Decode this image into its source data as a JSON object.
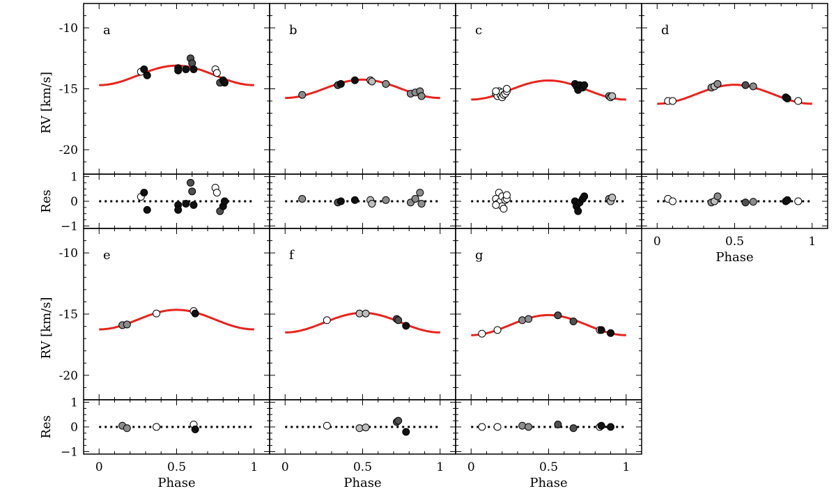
{
  "figure_text": {
    "x_axis_label": "Phase",
    "rv_axis_label": "RV [km/s]",
    "res_axis_label": "Res"
  },
  "colors": {
    "model_curve": "#e8231c",
    "marker_edge": "#000000",
    "white": "#ffffff",
    "light_gray": "#bdbdbd",
    "mid_gray": "#8c8c8c",
    "dark_gray": "#505050",
    "black": "#111111"
  },
  "chart_data": [
    {
      "id": "a",
      "type": "scatter",
      "label": "a",
      "xlim": [
        -0.1,
        1.1
      ],
      "rv_ylim": [
        -22,
        -8
      ],
      "res_ylim": [
        -1.1,
        1.1
      ],
      "rv_ticks": [
        -10,
        -15,
        -20
      ],
      "res_ticks": [
        1,
        0,
        -1
      ],
      "x_ticks": [
        0,
        0.5,
        1
      ],
      "x_tick_labels": [],
      "rv_tick_labels": [
        "-10",
        "-15",
        "-20"
      ],
      "res_tick_labels": [
        "1",
        "0",
        "−1"
      ],
      "model": {
        "gamma": -13.9,
        "amplitude": 0.8
      },
      "points": [
        {
          "phase": 0.27,
          "rv": -13.6,
          "res": 0.18,
          "shade": "white"
        },
        {
          "phase": 0.29,
          "rv": -13.4,
          "res": 0.35,
          "shade": "black"
        },
        {
          "phase": 0.31,
          "rv": -13.9,
          "res": -0.35,
          "shade": "black"
        },
        {
          "phase": 0.51,
          "rv": -13.3,
          "res": -0.15,
          "shade": "black"
        },
        {
          "phase": 0.51,
          "rv": -13.5,
          "res": -0.35,
          "shade": "black"
        },
        {
          "phase": 0.56,
          "rv": -13.4,
          "res": -0.1,
          "shade": "black"
        },
        {
          "phase": 0.59,
          "rv": -12.5,
          "res": 0.75,
          "shade": "dark_gray"
        },
        {
          "phase": 0.6,
          "rv": -12.9,
          "res": 0.4,
          "shade": "dark_gray"
        },
        {
          "phase": 0.61,
          "rv": -13.4,
          "res": -0.15,
          "shade": "black"
        },
        {
          "phase": 0.75,
          "rv": -13.4,
          "res": 0.55,
          "shade": "white"
        },
        {
          "phase": 0.76,
          "rv": -13.7,
          "res": 0.35,
          "shade": "white"
        },
        {
          "phase": 0.78,
          "rv": -14.5,
          "res": -0.4,
          "shade": "dark_gray"
        },
        {
          "phase": 0.8,
          "rv": -14.3,
          "res": -0.2,
          "shade": "black"
        },
        {
          "phase": 0.81,
          "rv": -14.5,
          "res": 0.0,
          "shade": "black"
        }
      ]
    },
    {
      "id": "b",
      "type": "scatter",
      "label": "b",
      "xlim": [
        -0.1,
        1.1
      ],
      "rv_ylim": [
        -22,
        -8
      ],
      "res_ylim": [
        -1.1,
        1.1
      ],
      "rv_ticks": [
        -10,
        -15,
        -20
      ],
      "res_ticks": [
        1,
        0,
        -1
      ],
      "x_ticks": [
        0,
        0.5,
        1
      ],
      "x_tick_labels": [],
      "rv_tick_labels": [],
      "res_tick_labels": [],
      "model": {
        "gamma": -15.0,
        "amplitude": 0.75
      },
      "points": [
        {
          "phase": 0.11,
          "rv": -15.5,
          "res": 0.1,
          "shade": "mid_gray"
        },
        {
          "phase": 0.34,
          "rv": -14.7,
          "res": -0.05,
          "shade": "dark_gray"
        },
        {
          "phase": 0.36,
          "rv": -14.6,
          "res": 0.0,
          "shade": "black"
        },
        {
          "phase": 0.45,
          "rv": -14.3,
          "res": 0.05,
          "shade": "black"
        },
        {
          "phase": 0.55,
          "rv": -14.3,
          "res": 0.05,
          "shade": "light_gray"
        },
        {
          "phase": 0.56,
          "rv": -14.4,
          "res": -0.1,
          "shade": "light_gray"
        },
        {
          "phase": 0.65,
          "rv": -14.6,
          "res": 0.05,
          "shade": "mid_gray"
        },
        {
          "phase": 0.81,
          "rv": -15.4,
          "res": -0.05,
          "shade": "mid_gray"
        },
        {
          "phase": 0.84,
          "rv": -15.3,
          "res": 0.1,
          "shade": "mid_gray"
        },
        {
          "phase": 0.87,
          "rv": -15.2,
          "res": 0.35,
          "shade": "mid_gray"
        },
        {
          "phase": 0.88,
          "rv": -15.6,
          "res": -0.1,
          "shade": "mid_gray"
        }
      ]
    },
    {
      "id": "c",
      "type": "scatter",
      "label": "c",
      "xlim": [
        -0.1,
        1.1
      ],
      "rv_ylim": [
        -22,
        -8
      ],
      "res_ylim": [
        -1.1,
        1.1
      ],
      "rv_ticks": [
        -10,
        -15,
        -20
      ],
      "res_ticks": [
        1,
        0,
        -1
      ],
      "x_ticks": [
        0,
        0.5,
        1
      ],
      "x_tick_labels": [],
      "rv_tick_labels": [],
      "res_tick_labels": [],
      "model": {
        "gamma": -15.1,
        "amplitude": 0.78
      },
      "points": [
        {
          "phase": 0.16,
          "rv": -15.4,
          "res": 0.1,
          "shade": "white"
        },
        {
          "phase": 0.17,
          "rv": -15.6,
          "res": -0.1,
          "shade": "white"
        },
        {
          "phase": 0.18,
          "rv": -15.2,
          "res": 0.35,
          "shade": "white"
        },
        {
          "phase": 0.19,
          "rv": -15.5,
          "res": 0.0,
          "shade": "white"
        },
        {
          "phase": 0.2,
          "rv": -15.7,
          "res": -0.2,
          "shade": "white"
        },
        {
          "phase": 0.2,
          "rv": -15.3,
          "res": 0.2,
          "shade": "white"
        },
        {
          "phase": 0.21,
          "rv": -15.5,
          "res": -0.3,
          "shade": "white"
        },
        {
          "phase": 0.22,
          "rv": -15.4,
          "res": 0.05,
          "shade": "white"
        },
        {
          "phase": 0.23,
          "rv": -15.2,
          "res": 0.1,
          "shade": "white"
        },
        {
          "phase": 0.23,
          "rv": -15.0,
          "res": 0.25,
          "shade": "white"
        },
        {
          "phase": 0.16,
          "rv": -15.2,
          "res": -0.15,
          "shade": "white"
        },
        {
          "phase": 0.67,
          "rv": -14.6,
          "res": 0.0,
          "shade": "black"
        },
        {
          "phase": 0.68,
          "rv": -14.8,
          "res": -0.2,
          "shade": "black"
        },
        {
          "phase": 0.69,
          "rv": -15.1,
          "res": -0.4,
          "shade": "black"
        },
        {
          "phase": 0.7,
          "rv": -14.7,
          "res": -0.05,
          "shade": "black"
        },
        {
          "phase": 0.72,
          "rv": -14.9,
          "res": 0.1,
          "shade": "black"
        },
        {
          "phase": 0.73,
          "rv": -14.7,
          "res": 0.2,
          "shade": "black"
        },
        {
          "phase": 0.89,
          "rv": -15.6,
          "res": 0.1,
          "shade": "mid_gray"
        },
        {
          "phase": 0.9,
          "rv": -15.7,
          "res": 0.0,
          "shade": "light_gray"
        },
        {
          "phase": 0.91,
          "rv": -15.6,
          "res": 0.15,
          "shade": "light_gray"
        }
      ]
    },
    {
      "id": "d",
      "type": "scatter",
      "label": "d",
      "xlim": [
        -0.1,
        1.1
      ],
      "rv_ylim": [
        -22,
        -8
      ],
      "res_ylim": [
        -1.1,
        1.1
      ],
      "rv_ticks": [
        -10,
        -15,
        -20
      ],
      "res_ticks": [
        1,
        0,
        -1
      ],
      "x_ticks": [
        0,
        0.5,
        1
      ],
      "x_tick_labels": [
        "0",
        "0.5",
        "1"
      ],
      "rv_tick_labels": [],
      "res_tick_labels": [],
      "show_xlabel": true,
      "model": {
        "gamma": -15.45,
        "amplitude": 0.78
      },
      "points": [
        {
          "phase": 0.07,
          "rv": -16.0,
          "res": 0.1,
          "shade": "white"
        },
        {
          "phase": 0.1,
          "rv": -16.0,
          "res": 0.0,
          "shade": "white"
        },
        {
          "phase": 0.35,
          "rv": -14.9,
          "res": -0.05,
          "shade": "mid_gray"
        },
        {
          "phase": 0.37,
          "rv": -14.8,
          "res": 0.0,
          "shade": "light_gray"
        },
        {
          "phase": 0.39,
          "rv": -14.6,
          "res": 0.2,
          "shade": "mid_gray"
        },
        {
          "phase": 0.57,
          "rv": -14.7,
          "res": -0.05,
          "shade": "dark_gray"
        },
        {
          "phase": 0.62,
          "rv": -14.8,
          "res": -0.02,
          "shade": "mid_gray"
        },
        {
          "phase": 0.83,
          "rv": -15.7,
          "res": 0.0,
          "shade": "black"
        },
        {
          "phase": 0.84,
          "rv": -15.8,
          "res": 0.05,
          "shade": "black"
        },
        {
          "phase": 0.91,
          "rv": -16.0,
          "res": 0.0,
          "shade": "white"
        }
      ]
    },
    {
      "id": "e",
      "type": "scatter",
      "label": "e",
      "xlim": [
        -0.1,
        1.1
      ],
      "rv_ylim": [
        -22,
        -8
      ],
      "res_ylim": [
        -1.1,
        1.1
      ],
      "rv_ticks": [
        -10,
        -15,
        -20
      ],
      "res_ticks": [
        1,
        0,
        -1
      ],
      "x_ticks": [
        0,
        0.5,
        1
      ],
      "x_tick_labels": [
        "0",
        "0.5",
        "1"
      ],
      "rv_tick_labels": [
        "-10",
        "-15",
        "-20"
      ],
      "res_tick_labels": [
        "1",
        "0",
        "−1"
      ],
      "show_xlabel": true,
      "model": {
        "gamma": -15.45,
        "amplitude": 0.8
      },
      "points": [
        {
          "phase": 0.15,
          "rv": -15.9,
          "res": 0.05,
          "shade": "mid_gray"
        },
        {
          "phase": 0.18,
          "rv": -15.85,
          "res": -0.05,
          "shade": "mid_gray"
        },
        {
          "phase": 0.37,
          "rv": -14.95,
          "res": 0.0,
          "shade": "white"
        },
        {
          "phase": 0.61,
          "rv": -14.75,
          "res": 0.1,
          "shade": "white"
        },
        {
          "phase": 0.62,
          "rv": -14.95,
          "res": -0.1,
          "shade": "black"
        }
      ]
    },
    {
      "id": "f",
      "type": "scatter",
      "label": "f",
      "xlim": [
        -0.1,
        1.1
      ],
      "rv_ylim": [
        -22,
        -8
      ],
      "res_ylim": [
        -1.1,
        1.1
      ],
      "rv_ticks": [
        -10,
        -15,
        -20
      ],
      "res_ticks": [
        1,
        0,
        -1
      ],
      "x_ticks": [
        0,
        0.5,
        1
      ],
      "x_tick_labels": [
        "0",
        "0.5",
        "1"
      ],
      "rv_tick_labels": [],
      "res_tick_labels": [],
      "show_xlabel": true,
      "model": {
        "gamma": -15.7,
        "amplitude": 0.8
      },
      "points": [
        {
          "phase": 0.27,
          "rv": -15.5,
          "res": 0.05,
          "shade": "white"
        },
        {
          "phase": 0.48,
          "rv": -14.95,
          "res": -0.05,
          "shade": "light_gray"
        },
        {
          "phase": 0.52,
          "rv": -14.95,
          "res": -0.02,
          "shade": "light_gray"
        },
        {
          "phase": 0.72,
          "rv": -15.4,
          "res": 0.2,
          "shade": "dark_gray"
        },
        {
          "phase": 0.73,
          "rv": -15.5,
          "res": 0.25,
          "shade": "dark_gray"
        },
        {
          "phase": 0.78,
          "rv": -15.95,
          "res": -0.2,
          "shade": "black"
        }
      ]
    },
    {
      "id": "g",
      "type": "scatter",
      "label": "g",
      "xlim": [
        -0.1,
        1.1
      ],
      "rv_ylim": [
        -22,
        -8
      ],
      "res_ylim": [
        -1.1,
        1.1
      ],
      "rv_ticks": [
        -10,
        -15,
        -20
      ],
      "res_ticks": [
        1,
        0,
        -1
      ],
      "x_ticks": [
        0,
        0.5,
        1
      ],
      "x_tick_labels": [
        "0",
        "0.5",
        "1"
      ],
      "rv_tick_labels": [],
      "res_tick_labels": [],
      "show_xlabel": true,
      "model": {
        "gamma": -15.9,
        "amplitude": 0.82
      },
      "points": [
        {
          "phase": 0.07,
          "rv": -16.6,
          "res": 0.0,
          "shade": "white"
        },
        {
          "phase": 0.17,
          "rv": -16.3,
          "res": 0.0,
          "shade": "white"
        },
        {
          "phase": 0.33,
          "rv": -15.5,
          "res": 0.05,
          "shade": "mid_gray"
        },
        {
          "phase": 0.37,
          "rv": -15.4,
          "res": 0.0,
          "shade": "mid_gray"
        },
        {
          "phase": 0.56,
          "rv": -15.1,
          "res": 0.1,
          "shade": "dark_gray"
        },
        {
          "phase": 0.66,
          "rv": -15.6,
          "res": -0.05,
          "shade": "dark_gray"
        },
        {
          "phase": 0.83,
          "rv": -16.3,
          "res": 0.0,
          "shade": "white"
        },
        {
          "phase": 0.84,
          "rv": -16.3,
          "res": 0.05,
          "shade": "black"
        },
        {
          "phase": 0.9,
          "rv": -16.55,
          "res": 0.0,
          "shade": "black"
        }
      ]
    }
  ]
}
